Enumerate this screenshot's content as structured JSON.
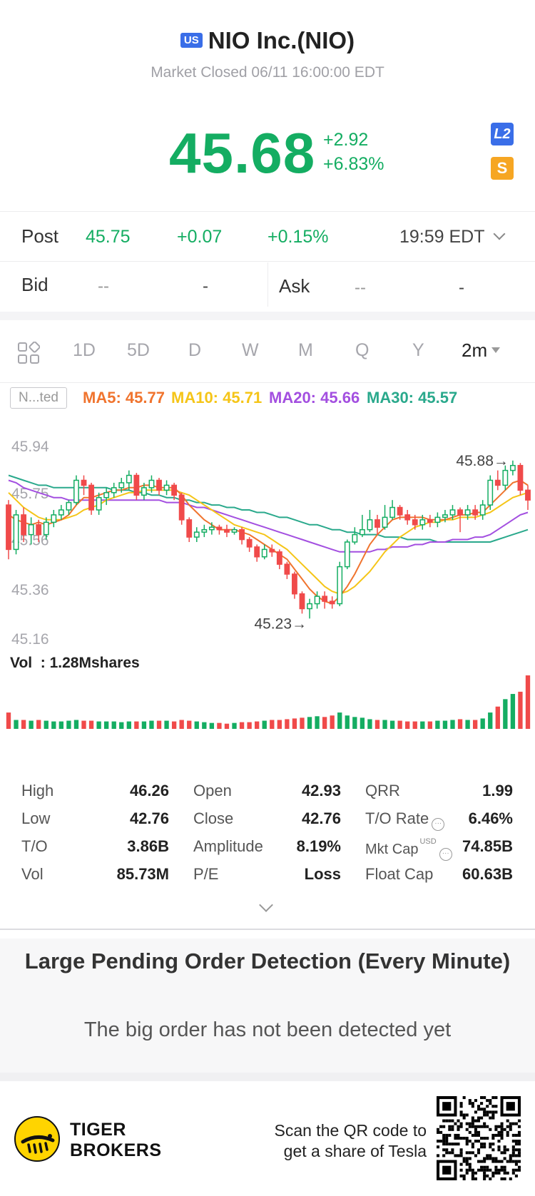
{
  "header": {
    "market_badge": "US",
    "title": "NIO Inc.(NIO)",
    "status": "Market Closed 06/11 16:00:00 EDT"
  },
  "quote": {
    "price": "45.68",
    "change": "+2.92",
    "change_pct": "+6.83%",
    "l2_badge": "L2",
    "dollar_badge": "S"
  },
  "post": {
    "label": "Post",
    "price": "45.75",
    "change": "+0.07",
    "change_pct": "+0.15%",
    "time": "19:59 EDT"
  },
  "bidask": {
    "bid_label": "Bid",
    "bid_price": "--",
    "bid_size": "-",
    "ask_label": "Ask",
    "ask_price": "--",
    "ask_size": "-"
  },
  "tabs": {
    "items": [
      "1D",
      "5D",
      "D",
      "W",
      "M",
      "Q",
      "Y"
    ],
    "active": "2m"
  },
  "indicators": {
    "mode_button": "N...ted",
    "ma5": "MA5: 45.77",
    "ma10": "MA10: 45.71",
    "ma20": "MA20: 45.66",
    "ma30": "MA30: 45.57",
    "colors": {
      "ma5": "#f0742e",
      "ma10": "#f5c518",
      "ma20": "#a34fe0",
      "ma30": "#2aa98c"
    }
  },
  "chart_data": {
    "type": "candlestick",
    "y_ticks": [
      "45.94",
      "45.75",
      "45.56",
      "45.36",
      "45.16"
    ],
    "ylim": [
      45.16,
      45.94
    ],
    "high_marker": "45.88→",
    "low_marker": "45.23→",
    "candles": [
      [
        45.7,
        45.52,
        45.72,
        45.48
      ],
      [
        45.52,
        45.66,
        45.68,
        45.5
      ],
      [
        45.66,
        45.58,
        45.69,
        45.55
      ],
      [
        45.58,
        45.62,
        45.65,
        45.54
      ],
      [
        45.62,
        45.58,
        45.64,
        45.55
      ],
      [
        45.58,
        45.63,
        45.65,
        45.56
      ],
      [
        45.63,
        45.66,
        45.68,
        45.61
      ],
      [
        45.66,
        45.68,
        45.7,
        45.64
      ],
      [
        45.68,
        45.71,
        45.72,
        45.66
      ],
      [
        45.71,
        45.8,
        45.82,
        45.7
      ],
      [
        45.8,
        45.78,
        45.82,
        45.74
      ],
      [
        45.78,
        45.68,
        45.79,
        45.66
      ],
      [
        45.68,
        45.73,
        45.75,
        45.66
      ],
      [
        45.73,
        45.75,
        45.77,
        45.7
      ],
      [
        45.75,
        45.77,
        45.79,
        45.73
      ],
      [
        45.77,
        45.79,
        45.81,
        45.75
      ],
      [
        45.79,
        45.82,
        45.84,
        45.76
      ],
      [
        45.82,
        45.74,
        45.83,
        45.72
      ],
      [
        45.74,
        45.77,
        45.79,
        45.72
      ],
      [
        45.77,
        45.8,
        45.82,
        45.75
      ],
      [
        45.8,
        45.76,
        45.81,
        45.74
      ],
      [
        45.76,
        45.78,
        45.8,
        45.74
      ],
      [
        45.78,
        45.74,
        45.79,
        45.72
      ],
      [
        45.74,
        45.64,
        45.75,
        45.62
      ],
      [
        45.64,
        45.57,
        45.65,
        45.55
      ],
      [
        45.57,
        45.59,
        45.61,
        45.55
      ],
      [
        45.59,
        45.6,
        45.62,
        45.57
      ],
      [
        45.6,
        45.61,
        45.63,
        45.58
      ],
      [
        45.61,
        45.6,
        45.62,
        45.58
      ],
      [
        45.6,
        45.59,
        45.62,
        45.57
      ],
      [
        45.59,
        45.6,
        45.61,
        45.58
      ],
      [
        45.6,
        45.56,
        45.61,
        45.54
      ],
      [
        45.56,
        45.53,
        45.57,
        45.51
      ],
      [
        45.53,
        45.49,
        45.54,
        45.47
      ],
      [
        45.49,
        45.52,
        45.54,
        45.48
      ],
      [
        45.52,
        45.51,
        45.54,
        45.49
      ],
      [
        45.51,
        45.46,
        45.52,
        45.44
      ],
      [
        45.46,
        45.42,
        45.47,
        45.4
      ],
      [
        45.42,
        45.34,
        45.43,
        45.32
      ],
      [
        45.34,
        45.28,
        45.35,
        45.26
      ],
      [
        45.28,
        45.3,
        45.32,
        45.24
      ],
      [
        45.3,
        45.33,
        45.35,
        45.28
      ],
      [
        45.33,
        45.31,
        45.35,
        45.28
      ],
      [
        45.31,
        45.3,
        45.33,
        45.28
      ],
      [
        45.3,
        45.45,
        45.47,
        45.29
      ],
      [
        45.45,
        45.55,
        45.56,
        45.44
      ],
      [
        45.55,
        45.58,
        45.61,
        45.54
      ],
      [
        45.58,
        45.6,
        45.66,
        45.57
      ],
      [
        45.6,
        45.64,
        45.68,
        45.59
      ],
      [
        45.64,
        45.61,
        45.66,
        45.58
      ],
      [
        45.61,
        45.65,
        45.7,
        45.6
      ],
      [
        45.65,
        45.69,
        45.72,
        45.64
      ],
      [
        45.69,
        45.66,
        45.7,
        45.64
      ],
      [
        45.66,
        45.64,
        45.68,
        45.62
      ],
      [
        45.64,
        45.62,
        45.66,
        45.6
      ],
      [
        45.62,
        45.64,
        45.66,
        45.6
      ],
      [
        45.64,
        45.63,
        45.66,
        45.61
      ],
      [
        45.63,
        45.65,
        45.67,
        45.61
      ],
      [
        45.65,
        45.66,
        45.68,
        45.63
      ],
      [
        45.66,
        45.68,
        45.7,
        45.64
      ],
      [
        45.68,
        45.66,
        45.69,
        45.59
      ],
      [
        45.66,
        45.68,
        45.7,
        45.64
      ],
      [
        45.68,
        45.66,
        45.7,
        45.64
      ],
      [
        45.66,
        45.7,
        45.72,
        45.64
      ],
      [
        45.7,
        45.8,
        45.82,
        45.68
      ],
      [
        45.8,
        45.78,
        45.84,
        45.76
      ],
      [
        45.78,
        45.84,
        45.86,
        45.76
      ],
      [
        45.84,
        45.86,
        45.88,
        45.82
      ],
      [
        45.86,
        45.76,
        45.87,
        45.74
      ],
      [
        45.76,
        45.72,
        45.78,
        45.68
      ]
    ],
    "ma5": [
      45.66,
      45.64,
      45.63,
      45.62,
      45.63,
      45.62,
      45.63,
      45.64,
      45.66,
      45.7,
      45.73,
      45.73,
      45.74,
      45.75,
      45.76,
      45.76,
      45.77,
      45.77,
      45.78,
      45.78,
      45.77,
      45.77,
      45.77,
      45.74,
      45.7,
      45.67,
      45.64,
      45.62,
      45.6,
      45.6,
      45.6,
      45.59,
      45.58,
      45.56,
      45.54,
      45.52,
      45.5,
      45.48,
      45.44,
      45.4,
      45.36,
      45.33,
      45.31,
      45.3,
      45.33,
      45.37,
      45.42,
      45.48,
      45.54,
      45.58,
      45.61,
      45.64,
      45.65,
      45.65,
      45.65,
      45.65,
      45.64,
      45.64,
      45.64,
      45.65,
      45.66,
      45.66,
      45.67,
      45.67,
      45.7,
      45.73,
      45.76,
      45.79,
      45.8,
      45.78
    ],
    "ma10": [
      45.75,
      45.72,
      45.69,
      45.67,
      45.65,
      45.64,
      45.64,
      45.64,
      45.65,
      45.66,
      45.68,
      45.69,
      45.7,
      45.72,
      45.73,
      45.74,
      45.75,
      45.75,
      45.76,
      45.76,
      45.76,
      45.76,
      45.76,
      45.75,
      45.74,
      45.72,
      45.7,
      45.68,
      45.66,
      45.64,
      45.62,
      45.61,
      45.6,
      45.59,
      45.58,
      45.56,
      45.54,
      45.52,
      45.49,
      45.46,
      45.43,
      45.4,
      45.37,
      45.35,
      45.34,
      45.35,
      45.37,
      45.4,
      45.43,
      45.47,
      45.51,
      45.54,
      45.57,
      45.59,
      45.61,
      45.62,
      45.63,
      45.63,
      45.64,
      45.64,
      45.65,
      45.65,
      45.65,
      45.66,
      45.67,
      45.69,
      45.71,
      45.73,
      45.74,
      45.75
    ],
    "ma20": [
      45.8,
      45.79,
      45.77,
      45.76,
      45.75,
      45.74,
      45.73,
      45.73,
      45.72,
      45.72,
      45.72,
      45.72,
      45.72,
      45.72,
      45.72,
      45.72,
      45.72,
      45.72,
      45.72,
      45.72,
      45.72,
      45.71,
      45.71,
      45.71,
      45.7,
      45.69,
      45.69,
      45.68,
      45.67,
      45.66,
      45.65,
      45.64,
      45.63,
      45.62,
      45.61,
      45.6,
      45.59,
      45.58,
      45.57,
      45.56,
      45.55,
      45.54,
      45.53,
      45.52,
      45.51,
      45.51,
      45.51,
      45.51,
      45.51,
      45.52,
      45.52,
      45.53,
      45.53,
      45.53,
      45.54,
      45.54,
      45.55,
      45.55,
      45.55,
      45.56,
      45.56,
      45.56,
      45.57,
      45.57,
      45.58,
      45.6,
      45.62,
      45.64,
      45.66,
      45.67
    ],
    "ma30": [
      45.82,
      45.81,
      45.8,
      45.79,
      45.78,
      45.78,
      45.77,
      45.77,
      45.77,
      45.77,
      45.77,
      45.77,
      45.77,
      45.77,
      45.76,
      45.76,
      45.76,
      45.75,
      45.75,
      45.74,
      45.74,
      45.73,
      45.73,
      45.72,
      45.72,
      45.71,
      45.71,
      45.7,
      45.7,
      45.69,
      45.69,
      45.68,
      45.68,
      45.67,
      45.67,
      45.66,
      45.65,
      45.65,
      45.64,
      45.63,
      45.62,
      45.62,
      45.61,
      45.6,
      45.6,
      45.59,
      45.59,
      45.58,
      45.58,
      45.58,
      45.57,
      45.57,
      45.57,
      45.56,
      45.56,
      45.56,
      45.56,
      45.55,
      45.55,
      45.55,
      45.55,
      45.55,
      45.55,
      45.55,
      45.55,
      45.56,
      45.57,
      45.58,
      45.59,
      45.6
    ],
    "volume_label": "Vol  : 1.28Mshares",
    "volumes": [
      22,
      12,
      12,
      11,
      12,
      11,
      10,
      10,
      11,
      12,
      11,
      11,
      10,
      10,
      10,
      9,
      10,
      10,
      10,
      11,
      11,
      11,
      10,
      12,
      11,
      10,
      9,
      8,
      8,
      7,
      8,
      9,
      9,
      10,
      11,
      12,
      12,
      13,
      14,
      15,
      16,
      17,
      16,
      18,
      22,
      18,
      16,
      15,
      13,
      12,
      12,
      11,
      11,
      10,
      10,
      10,
      10,
      11,
      11,
      12,
      13,
      12,
      12,
      14,
      22,
      30,
      40,
      47,
      50,
      72
    ]
  },
  "stats": {
    "col1": [
      {
        "label": "High",
        "value": "46.26"
      },
      {
        "label": "Low",
        "value": "42.76"
      },
      {
        "label": "T/O",
        "value": "3.86B"
      },
      {
        "label": "Vol",
        "value": "85.73M"
      }
    ],
    "col2": [
      {
        "label": "Open",
        "value": "42.93"
      },
      {
        "label": "Close",
        "value": "42.76"
      },
      {
        "label": "Amplitude",
        "value": "8.19%"
      },
      {
        "label": "P/E",
        "value": "Loss"
      }
    ],
    "col3": [
      {
        "label": "QRR",
        "value": "1.99"
      },
      {
        "label": "T/O Rate",
        "value": "6.46%"
      },
      {
        "label": "Mkt Cap",
        "value": "74.85B",
        "sup": "USD"
      },
      {
        "label": "Float Cap",
        "value": "60.63B"
      }
    ]
  },
  "pending": {
    "title": "Large Pending Order Detection (Every Minute)",
    "message": "The big order has not been detected yet"
  },
  "footer": {
    "brand_line1": "TIGER",
    "brand_line2": "BROKERS",
    "scan_line1": "Scan the QR code to",
    "scan_line2": "get a share of Tesla"
  }
}
